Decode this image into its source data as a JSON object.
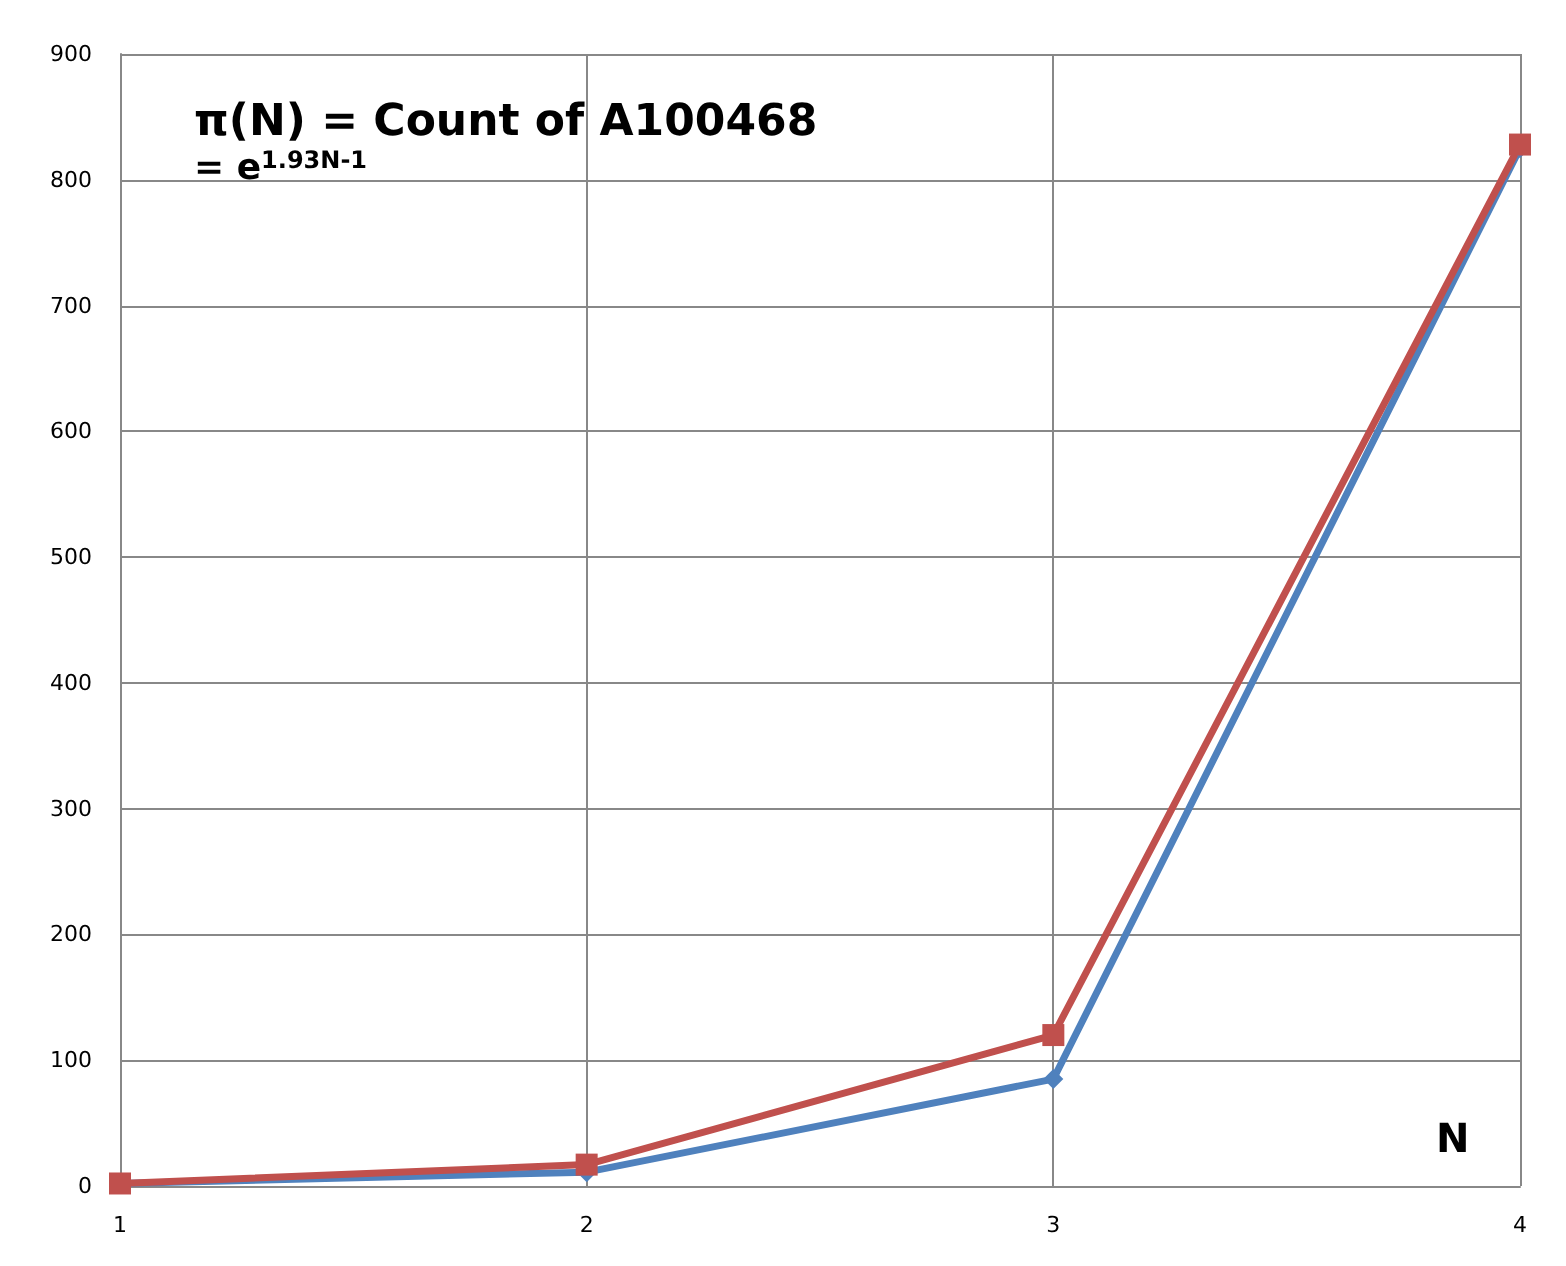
{
  "chart_data": {
    "type": "line",
    "title": "π(N) = Count of A100468",
    "subtitle": "= e$^{1.93N-1}$",
    "xlabel": "N",
    "x": [
      1,
      2,
      3,
      4
    ],
    "xlim": [
      1,
      4
    ],
    "xticks": [
      1,
      2,
      3,
      4
    ],
    "ylim": [
      0,
      900
    ],
    "yticks": [
      0,
      100,
      200,
      300,
      400,
      500,
      600,
      700,
      800,
      900
    ],
    "grid": true,
    "line_style": "solid",
    "series": [
      {
        "color": "#4f81bd",
        "marker": "diamond",
        "values": [
          2,
          11,
          85,
          825
        ]
      },
      {
        "color": "#c0504d",
        "marker": "square",
        "values": [
          2,
          17,
          120,
          828
        ]
      }
    ]
  }
}
